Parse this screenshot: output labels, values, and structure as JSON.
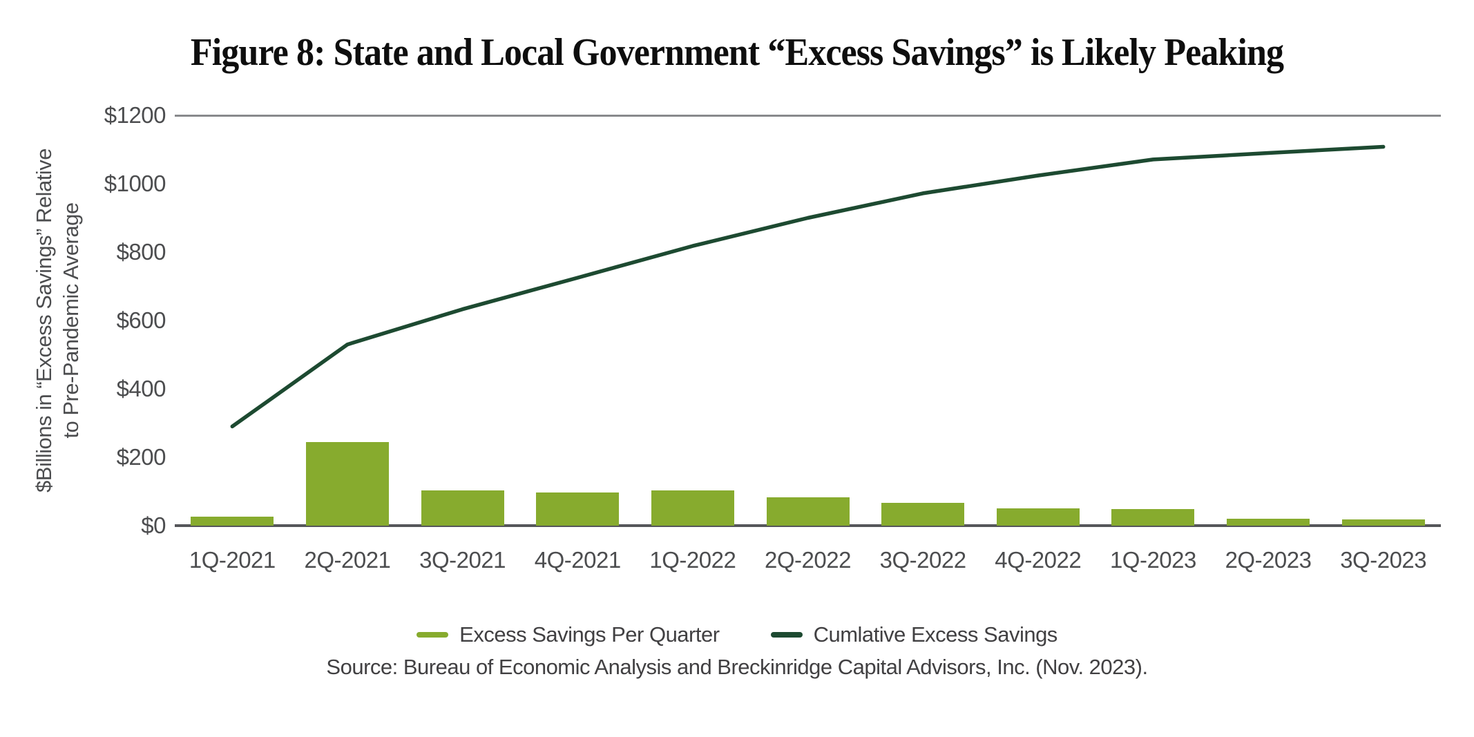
{
  "title": "Figure 8: State and Local Government “Excess Savings” is Likely Peaking",
  "y_axis": {
    "line1": "$Billions in “Excess Savings” Relative",
    "line2": "to Pre-Pandemic Average"
  },
  "legend": {
    "items": [
      {
        "label": "Excess Savings Per Quarter",
        "swatch": "bar-swatch"
      },
      {
        "label": "Cumlative Excess Savings",
        "swatch": "line-swatch"
      }
    ]
  },
  "source": "Source: Bureau of Economic Analysis and Breckinridge Capital Advisors, Inc. (Nov. 2023).",
  "colors": {
    "bar_green": "#87ab2e",
    "line_green": "#1d4a31",
    "axis_text": "#4c4d4f",
    "note_text": "#414042",
    "top_gridline": "#88898c",
    "baseline": "#55565a",
    "title_text": "#0e0e0e"
  },
  "chart_data": {
    "type": "bar",
    "subtype": "combo-bar-and-line",
    "title": "Figure 8: State and Local Government “Excess Savings” is Likely Peaking",
    "xlabel": "",
    "ylabel": "$Billions in “Excess Savings” Relative to Pre-Pandemic Average",
    "ylim": [
      0,
      1200
    ],
    "y_tick_step": 200,
    "y_ticks": [
      {
        "value": 0,
        "label": "$0"
      },
      {
        "value": 200,
        "label": "$200"
      },
      {
        "value": 400,
        "label": "$400"
      },
      {
        "value": 600,
        "label": "$600"
      },
      {
        "value": 800,
        "label": "$800"
      },
      {
        "value": 1000,
        "label": "$1000"
      },
      {
        "value": 1200,
        "label": "$1200"
      }
    ],
    "categories": [
      "1Q-2021",
      "2Q-2021",
      "3Q-2021",
      "4Q-2021",
      "1Q-2022",
      "2Q-2022",
      "3Q-2022",
      "4Q-2022",
      "1Q-2023",
      "2Q-2023",
      "3Q-2023"
    ],
    "series": [
      {
        "name": "Excess Savings Per Quarter",
        "type": "bar",
        "values": [
          27,
          245,
          104,
          97,
          104,
          83,
          67,
          51,
          48,
          21,
          19
        ]
      },
      {
        "name": "Cumlative Excess Savings",
        "type": "line",
        "values": [
          290,
          530,
          633,
          725,
          818,
          900,
          972,
          1024,
          1071,
          1090,
          1108
        ]
      }
    ],
    "legend_position": "bottom",
    "gridlines": "top $1200 line and $0 baseline only"
  }
}
